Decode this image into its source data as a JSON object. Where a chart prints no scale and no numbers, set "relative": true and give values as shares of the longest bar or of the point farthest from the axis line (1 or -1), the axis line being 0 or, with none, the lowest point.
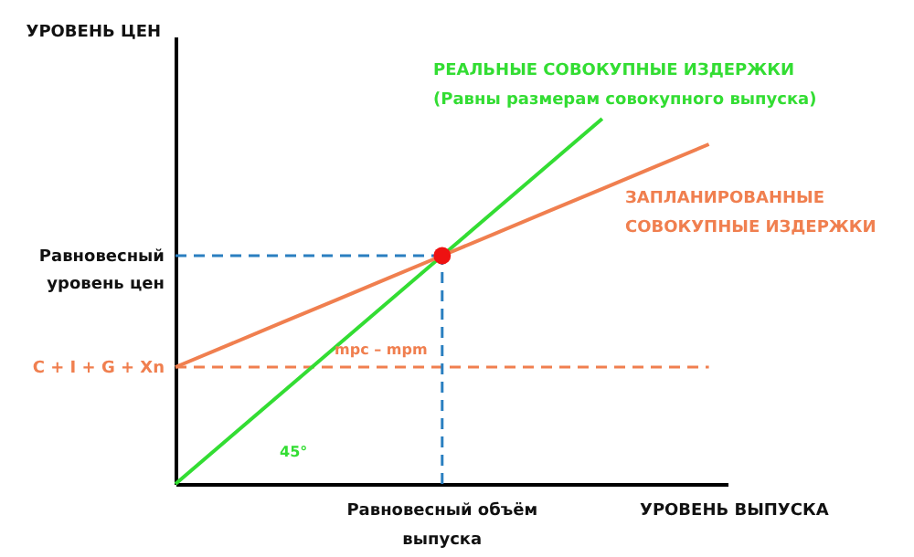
{
  "chart_data": {
    "type": "line",
    "relative": true,
    "xlabel": "УРОВЕНЬ ВЫПУСКА",
    "ylabel": "УРОВЕНЬ ЦЕН",
    "categories": [
      null,
      null,
      null,
      null,
      null,
      null,
      null,
      null,
      null,
      null,
      null
    ],
    "series": [
      {
        "name": "РЕАЛЬНЫЕ СОВОКУПНЫЕ ИЗДЕРЖКИ\n(Равны размерам совокупного выпуска)",
        "color": "#33dd33",
        "values": [
          0,
          0.125,
          0.25,
          0.375,
          0.5,
          0.625,
          0.75,
          0.875,
          1.0,
          null,
          null
        ]
      },
      {
        "name": "ЗАПЛАНИРОВАННЫЕ\nСОВОКУПНЫЕ ИЗДЕРЖКИ",
        "color": "#f07f4f",
        "values": [
          0.32,
          0.381,
          0.442,
          0.503,
          0.564,
          0.625,
          0.686,
          0.747,
          0.808,
          0.869,
          0.93
        ]
      }
    ],
    "ref_lines": [
      {
        "axis": "y",
        "value": 0.625,
        "label": "Равновесный\nуровень цен",
        "color": "#2a7fc0",
        "line_style": "dashed"
      },
      {
        "axis": "y",
        "value": 0.32,
        "label": "C + I + G + Xn",
        "color": "#f07f4f",
        "line_style": "dashed"
      }
    ],
    "annotations": [
      "mpc – mpm",
      "45°",
      "Равновесный объём\nвыпуска"
    ]
  }
}
